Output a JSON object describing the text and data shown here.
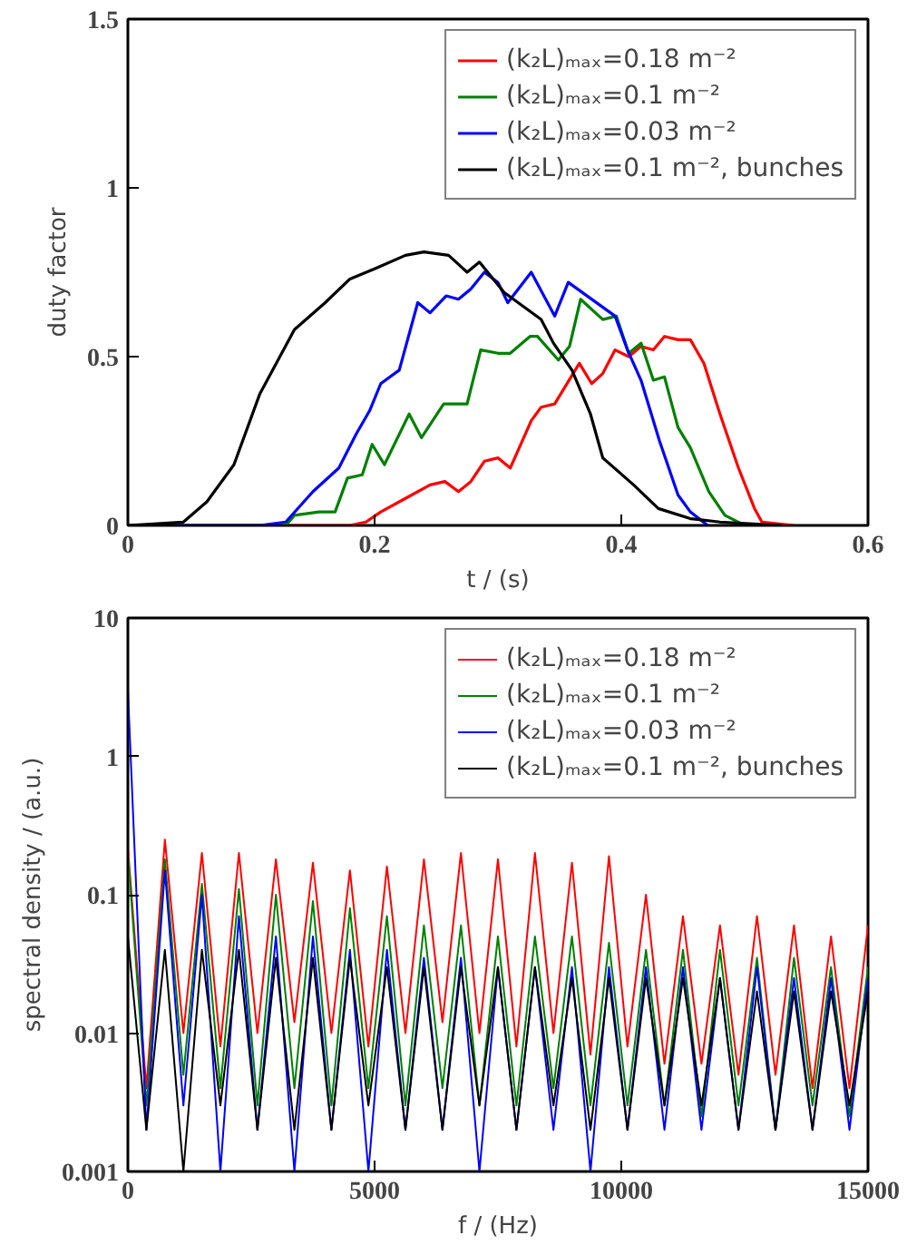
{
  "chart_data": [
    {
      "type": "line",
      "xlabel": "t / (s)",
      "ylabel": "duty factor",
      "xlim": [
        0,
        0.6
      ],
      "xticks": [
        0,
        0.2,
        0.4,
        0.6
      ],
      "ylim": [
        0,
        1.5
      ],
      "yticks": [
        0,
        0.5,
        1,
        1.5
      ],
      "grid": false,
      "legend": "top right",
      "series": [
        {
          "name": "(k₂L)ₘₐₓ=0.18 m⁻²",
          "color": "#ff0000",
          "x": [
            0,
            0.18,
            0.193,
            0.205,
            0.225,
            0.245,
            0.257,
            0.268,
            0.278,
            0.289,
            0.3,
            0.31,
            0.327,
            0.335,
            0.346,
            0.366,
            0.376,
            0.385,
            0.395,
            0.406,
            0.416,
            0.426,
            0.435,
            0.446,
            0.456,
            0.467,
            0.48,
            0.495,
            0.508,
            0.514,
            0.54
          ],
          "values": [
            0,
            0,
            0.01,
            0.04,
            0.08,
            0.12,
            0.13,
            0.1,
            0.13,
            0.19,
            0.2,
            0.17,
            0.31,
            0.35,
            0.36,
            0.48,
            0.42,
            0.45,
            0.52,
            0.5,
            0.53,
            0.52,
            0.56,
            0.55,
            0.55,
            0.48,
            0.33,
            0.17,
            0.05,
            0.01,
            0
          ]
        },
        {
          "name": "(k₂L)ₘₐₓ=0.1 m⁻²",
          "color": "#008000",
          "x": [
            0,
            0.128,
            0.135,
            0.155,
            0.168,
            0.178,
            0.19,
            0.198,
            0.208,
            0.228,
            0.238,
            0.256,
            0.275,
            0.286,
            0.3,
            0.31,
            0.326,
            0.332,
            0.349,
            0.358,
            0.367,
            0.385,
            0.396,
            0.406,
            0.416,
            0.426,
            0.435,
            0.446,
            0.456,
            0.471,
            0.484,
            0.5
          ],
          "values": [
            0,
            0,
            0.03,
            0.04,
            0.04,
            0.14,
            0.15,
            0.24,
            0.18,
            0.33,
            0.26,
            0.36,
            0.36,
            0.52,
            0.51,
            0.51,
            0.56,
            0.56,
            0.49,
            0.53,
            0.67,
            0.61,
            0.62,
            0.51,
            0.54,
            0.43,
            0.44,
            0.29,
            0.23,
            0.1,
            0.03,
            0
          ]
        },
        {
          "name": "(k₂L)ₘₐₓ=0.03 m⁻²",
          "color": "#0000ff",
          "x": [
            0,
            0.107,
            0.128,
            0.15,
            0.171,
            0.185,
            0.196,
            0.205,
            0.22,
            0.235,
            0.245,
            0.258,
            0.268,
            0.278,
            0.289,
            0.3,
            0.308,
            0.327,
            0.346,
            0.357,
            0.395,
            0.405,
            0.416,
            0.431,
            0.446,
            0.456,
            0.47
          ],
          "values": [
            0,
            0,
            0.01,
            0.1,
            0.17,
            0.27,
            0.34,
            0.42,
            0.46,
            0.66,
            0.63,
            0.68,
            0.67,
            0.7,
            0.75,
            0.72,
            0.66,
            0.75,
            0.62,
            0.72,
            0.62,
            0.52,
            0.43,
            0.25,
            0.09,
            0.04,
            0
          ]
        },
        {
          "name": "(k₂L)ₘₐₓ=0.1 m⁻², bunches",
          "color": "#000000",
          "x": [
            0,
            0.045,
            0.064,
            0.086,
            0.107,
            0.135,
            0.16,
            0.18,
            0.2,
            0.225,
            0.24,
            0.26,
            0.275,
            0.285,
            0.305,
            0.335,
            0.345,
            0.36,
            0.375,
            0.385,
            0.41,
            0.43,
            0.456,
            0.48,
            0.53
          ],
          "values": [
            0,
            0.01,
            0.07,
            0.18,
            0.39,
            0.58,
            0.66,
            0.73,
            0.76,
            0.8,
            0.81,
            0.8,
            0.75,
            0.78,
            0.69,
            0.61,
            0.54,
            0.46,
            0.33,
            0.2,
            0.12,
            0.05,
            0.02,
            0.01,
            0
          ]
        }
      ]
    },
    {
      "type": "line",
      "xlabel": "f / (Hz)",
      "ylabel": "spectral density / (a.u.)",
      "log": "y",
      "xlim": [
        0,
        15000
      ],
      "xticks": [
        0,
        5000,
        10000,
        15000
      ],
      "ylim": [
        0.001,
        10
      ],
      "yticks": [
        0.001,
        0.01,
        0.1,
        1,
        10
      ],
      "grid": false,
      "legend": "top right",
      "x": [
        0,
        375,
        750,
        1125,
        1500,
        1875,
        2250,
        2625,
        3000,
        3375,
        3750,
        4125,
        4500,
        4875,
        5250,
        5625,
        6000,
        6375,
        6750,
        7125,
        7500,
        7875,
        8250,
        8625,
        9000,
        9375,
        9750,
        10125,
        10500,
        10875,
        11250,
        11625,
        12000,
        12375,
        12750,
        13125,
        13500,
        13875,
        14250,
        14625,
        15000
      ],
      "series": [
        {
          "name": "(k₂L)ₘₐₓ=0.18 m⁻²",
          "color": "#ff0000",
          "values": [
            0.22,
            0.004,
            0.25,
            0.01,
            0.2,
            0.008,
            0.2,
            0.01,
            0.18,
            0.012,
            0.17,
            0.01,
            0.15,
            0.008,
            0.16,
            0.01,
            0.18,
            0.012,
            0.2,
            0.01,
            0.18,
            0.008,
            0.2,
            0.01,
            0.17,
            0.007,
            0.19,
            0.008,
            0.1,
            0.006,
            0.07,
            0.006,
            0.06,
            0.005,
            0.07,
            0.005,
            0.06,
            0.004,
            0.05,
            0.004,
            0.06
          ]
        },
        {
          "name": "(k₂L)ₘₐₓ=0.1 m⁻²",
          "color": "#008000",
          "values": [
            0.2,
            0.003,
            0.18,
            0.005,
            0.12,
            0.004,
            0.11,
            0.003,
            0.1,
            0.004,
            0.09,
            0.003,
            0.08,
            0.004,
            0.07,
            0.003,
            0.06,
            0.004,
            0.06,
            0.003,
            0.05,
            0.003,
            0.05,
            0.004,
            0.05,
            0.003,
            0.045,
            0.003,
            0.04,
            0.003,
            0.04,
            0.0025,
            0.04,
            0.003,
            0.035,
            0.002,
            0.035,
            0.003,
            0.03,
            0.0025,
            0.03
          ]
        },
        {
          "name": "(k₂L)ₘₐₓ=0.03 m⁻²",
          "color": "#0000ff",
          "values": [
            3,
            0.002,
            0.15,
            0.003,
            0.1,
            0.001,
            0.07,
            0.002,
            0.05,
            0.001,
            0.05,
            0.002,
            0.04,
            0.001,
            0.04,
            0.002,
            0.035,
            0.002,
            0.035,
            0.001,
            0.03,
            0.002,
            0.03,
            0.002,
            0.03,
            0.001,
            0.03,
            0.002,
            0.03,
            0.002,
            0.03,
            0.002,
            0.025,
            0.002,
            0.03,
            0.002,
            0.025,
            0.002,
            0.025,
            0.002,
            0.025
          ]
        },
        {
          "name": "(k₂L)ₘₐₓ=0.1 m⁻², bunches",
          "color": "#000000",
          "values": [
            0.05,
            0.002,
            0.04,
            0.001,
            0.04,
            0.003,
            0.04,
            0.002,
            0.035,
            0.002,
            0.035,
            0.002,
            0.035,
            0.003,
            0.03,
            0.002,
            0.03,
            0.002,
            0.03,
            0.003,
            0.03,
            0.002,
            0.03,
            0.003,
            0.025,
            0.002,
            0.025,
            0.002,
            0.025,
            0.003,
            0.025,
            0.003,
            0.025,
            0.002,
            0.02,
            0.002,
            0.02,
            0.002,
            0.02,
            0.003,
            0.02
          ]
        }
      ]
    }
  ]
}
